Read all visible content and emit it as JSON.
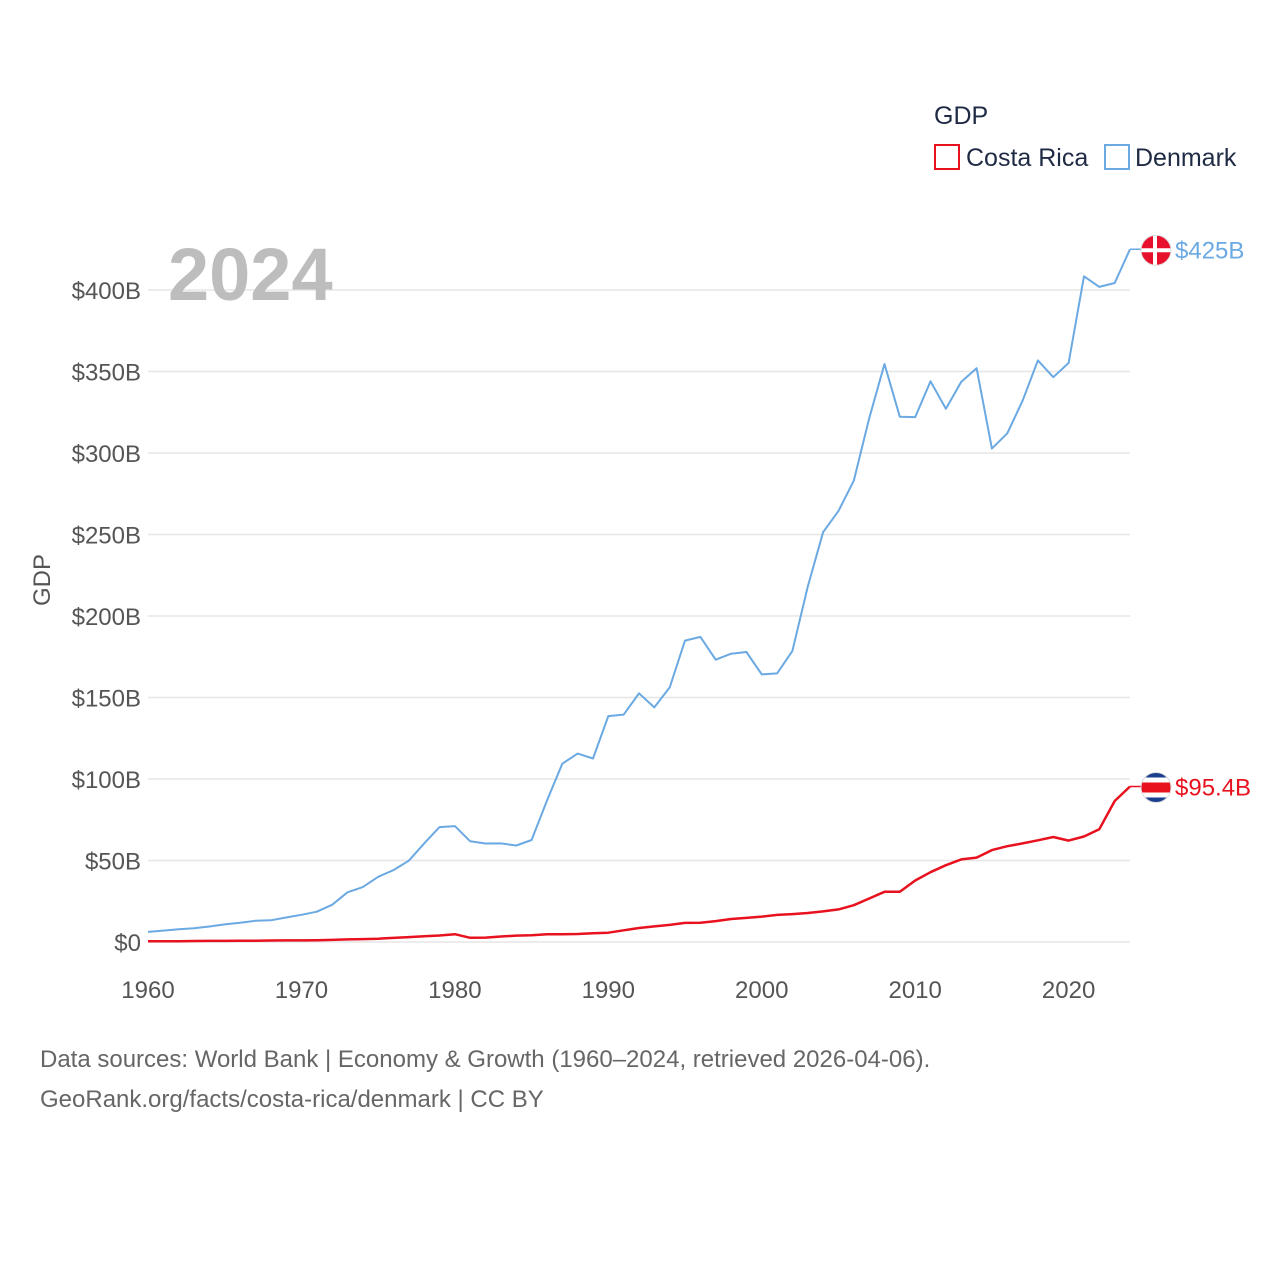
{
  "chart_data": {
    "type": "line",
    "title": "GDP",
    "ylabel": "GDP",
    "xlabel": "",
    "xlim": [
      1960,
      2024
    ],
    "ylim": [
      0,
      425
    ],
    "x_ticks": [
      1960,
      1970,
      1980,
      1990,
      2000,
      2010,
      2020
    ],
    "y_ticks": [
      0,
      50,
      100,
      150,
      200,
      250,
      300,
      350,
      400
    ],
    "y_tick_labels": [
      "$0",
      "$50B",
      "$100B",
      "$150B",
      "$200B",
      "$250B",
      "$300B",
      "$350B",
      "$400B"
    ],
    "current_year": "2024",
    "legend_title": "GDP",
    "legend_position": "top-right",
    "x": [
      1960,
      1961,
      1962,
      1963,
      1964,
      1965,
      1966,
      1967,
      1968,
      1969,
      1970,
      1971,
      1972,
      1973,
      1974,
      1975,
      1976,
      1977,
      1978,
      1979,
      1980,
      1981,
      1982,
      1983,
      1984,
      1985,
      1986,
      1987,
      1988,
      1989,
      1990,
      1991,
      1992,
      1993,
      1994,
      1995,
      1996,
      1997,
      1998,
      1999,
      2000,
      2001,
      2002,
      2003,
      2004,
      2005,
      2006,
      2007,
      2008,
      2009,
      2010,
      2011,
      2012,
      2013,
      2014,
      2015,
      2016,
      2017,
      2018,
      2019,
      2020,
      2021,
      2022,
      2023,
      2024
    ],
    "series": [
      {
        "name": "Costa Rica",
        "color": "#e8121f",
        "end_label": "$95.4B",
        "flag": "costa-rica-flag-icon",
        "values": [
          0.5,
          0.5,
          0.5,
          0.6,
          0.7,
          0.7,
          0.8,
          0.8,
          0.9,
          1.0,
          1.0,
          1.1,
          1.3,
          1.6,
          1.8,
          2.0,
          2.5,
          3.0,
          3.5,
          4.0,
          4.8,
          2.6,
          2.7,
          3.4,
          3.9,
          4.2,
          4.7,
          4.8,
          4.9,
          5.4,
          5.7,
          7.2,
          8.6,
          9.6,
          10.5,
          11.7,
          11.8,
          12.8,
          14.1,
          14.8,
          15.6,
          16.6,
          17.1,
          17.8,
          18.8,
          20.0,
          22.6,
          26.7,
          30.8,
          30.8,
          37.7,
          42.8,
          47.1,
          50.7,
          51.8,
          56.4,
          58.8,
          60.5,
          62.4,
          64.4,
          62.2,
          64.7,
          69.2,
          86.5,
          95.4
        ]
      },
      {
        "name": "Denmark",
        "color": "#6ba9e3",
        "end_label": "$425B",
        "flag": "denmark-flag-icon",
        "values": [
          6.2,
          7.0,
          7.8,
          8.4,
          9.5,
          10.8,
          11.8,
          13.0,
          13.3,
          15.0,
          16.7,
          18.6,
          22.8,
          30.5,
          33.7,
          40.0,
          44.1,
          49.9,
          60.5,
          70.5,
          71.1,
          61.8,
          60.4,
          60.5,
          59.2,
          62.6,
          86.6,
          109.4,
          115.6,
          112.6,
          138.6,
          139.5,
          152.6,
          143.9,
          156.2,
          184.9,
          187.2,
          173.2,
          176.9,
          177.9,
          164.2,
          164.8,
          178.6,
          218.1,
          251.4,
          264.5,
          283.0,
          321.3,
          354.6,
          322.3,
          322.0,
          344.0,
          327.1,
          343.6,
          352.0,
          302.7,
          312.1,
          332.1,
          356.8,
          346.5,
          355.2,
          408.4,
          401.9,
          404.3,
          425.0
        ]
      }
    ]
  },
  "footer": {
    "line1": "Data sources: World Bank | Economy & Growth (1960–2024, retrieved 2026-04-06).",
    "line2": "GeoRank.org/facts/costa-rica/denmark | CC BY"
  }
}
